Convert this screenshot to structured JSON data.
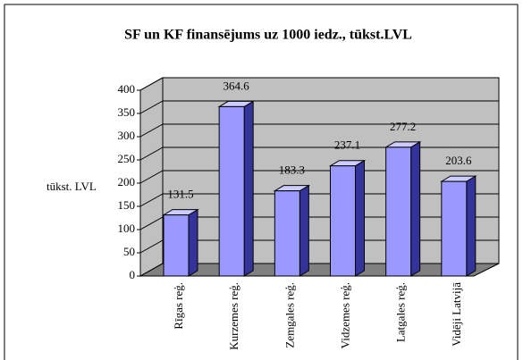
{
  "chart_data": {
    "type": "bar3d",
    "title": "SF un KF finansējums uz 1000 iedz., tūkst.LVL",
    "ylabel": "tūkst. LVL",
    "categories": [
      "Rīgas reģ.",
      "Kurzemes reģ.",
      "Zemgales reģ.",
      "Vidzemes reģ.",
      "Latgales reģ.",
      "Vidēji Latvijā"
    ],
    "values": [
      131.5,
      364.6,
      183.3,
      237.1,
      277.2,
      203.6
    ],
    "color": "#9999ff",
    "ylim": [
      0,
      400
    ],
    "yticks": [
      0,
      50,
      100,
      150,
      200,
      250,
      300,
      350,
      400
    ],
    "grid": true
  }
}
